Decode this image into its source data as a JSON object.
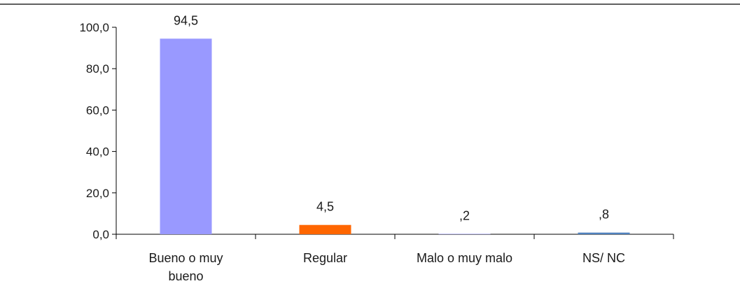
{
  "chart_data": {
    "type": "bar",
    "title": "",
    "xlabel": "",
    "ylabel": "",
    "categories": [
      [
        "Bueno o muy",
        "bueno"
      ],
      [
        "Regular"
      ],
      [
        "Malo o muy malo"
      ],
      [
        "NS/ NC"
      ]
    ],
    "values": [
      94.5,
      4.5,
      0.2,
      0.8
    ],
    "data_labels": [
      "94,5",
      "4,5",
      ",2",
      ",8"
    ],
    "colors": [
      "#9999ff",
      "#ff6600",
      "#9999ff",
      "#4f81bd"
    ],
    "ylim": [
      0,
      100
    ],
    "yticks": [
      0,
      20,
      40,
      60,
      80,
      100
    ],
    "ytick_labels": [
      "0,0",
      "20,0",
      "40,0",
      "60,0",
      "80,0",
      "100,0"
    ],
    "grid": false,
    "legend": "none"
  }
}
